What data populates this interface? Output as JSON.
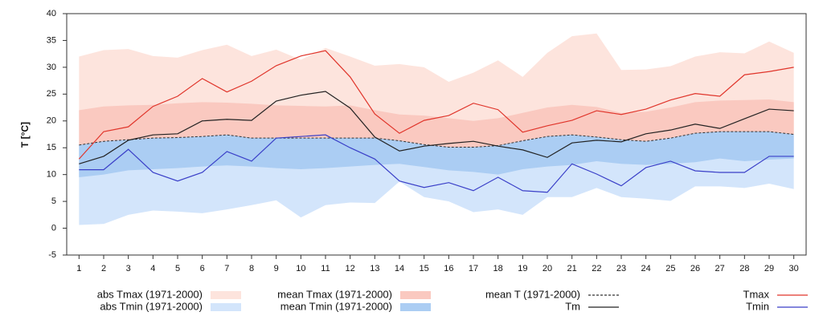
{
  "chart_data": {
    "type": "line",
    "ylabel": "T [°C]",
    "x": [
      1,
      2,
      3,
      4,
      5,
      6,
      7,
      8,
      9,
      10,
      11,
      12,
      13,
      14,
      15,
      16,
      17,
      18,
      19,
      20,
      21,
      22,
      23,
      24,
      25,
      26,
      27,
      28,
      29,
      30
    ],
    "xlim": [
      0.5,
      30.5
    ],
    "xticks": [
      1,
      2,
      3,
      4,
      5,
      6,
      7,
      8,
      9,
      10,
      11,
      12,
      13,
      14,
      15,
      16,
      17,
      18,
      19,
      20,
      21,
      22,
      23,
      24,
      25,
      26,
      27,
      28,
      29,
      30
    ],
    "ylim": [
      -5,
      40
    ],
    "yticks": [
      -5,
      0,
      5,
      10,
      15,
      20,
      25,
      30,
      35,
      40
    ],
    "series": [
      {
        "name": "abs Tmax (1971-2000)",
        "color": "#fde4dd",
        "style": "band",
        "values": [
          32,
          33.2,
          33.4,
          32.1,
          31.8,
          33.2,
          34.2,
          32.1,
          33.3,
          31.4,
          33.6,
          32,
          30.3,
          30.6,
          30,
          27.3,
          29,
          31.3,
          28.2,
          32.7,
          35.8,
          36.3,
          29.5,
          29.6,
          30.2,
          32,
          32.8,
          32.6,
          34.8,
          32.7
        ]
      },
      {
        "name": "abs Tmin (1971-2000)",
        "color": "#d3e5fb",
        "style": "band",
        "values": [
          0.6,
          0.8,
          2.5,
          3.3,
          3.1,
          2.8,
          3.5,
          4.3,
          5.2,
          2,
          4.3,
          4.8,
          4.7,
          8.7,
          5.8,
          5,
          3,
          3.5,
          2.5,
          5.8,
          5.8,
          7.5,
          5.8,
          5.5,
          5.1,
          7.8,
          7.8,
          7.5,
          8.3,
          7.3
        ]
      },
      {
        "name": "mean Tmax (1971-2000)",
        "color": "#fac9c0",
        "style": "band",
        "values": [
          22,
          22.7,
          22.9,
          23,
          23.3,
          23.5,
          23.4,
          23.2,
          22.9,
          22.8,
          22.7,
          22.9,
          22,
          21.2,
          21,
          20.5,
          20,
          20.5,
          21.5,
          22.5,
          23,
          22.6,
          21.5,
          21.7,
          22.5,
          23.5,
          23.8,
          23.9,
          24,
          23.5
        ]
      },
      {
        "name": "mean Tmin (1971-2000)",
        "color": "#abcdf3",
        "style": "band",
        "values": [
          9.5,
          10,
          10.8,
          11,
          11.2,
          11.5,
          11.7,
          11.5,
          11.2,
          11,
          11.2,
          11.5,
          11.8,
          12,
          11.4,
          10.8,
          10.5,
          10,
          11,
          11.5,
          11.8,
          12.5,
          12,
          11.8,
          12,
          12.3,
          13,
          12.5,
          12.8,
          13
        ]
      },
      {
        "name": "mean T (1971-2000)",
        "color": "#333333",
        "style": "dashed",
        "values": [
          15.5,
          16.2,
          16.5,
          16.8,
          16.9,
          17.1,
          17.4,
          16.8,
          16.8,
          16.8,
          16.8,
          16.8,
          16.8,
          16.3,
          15.6,
          15.1,
          15.1,
          15.4,
          16.3,
          17.1,
          17.4,
          17,
          16.5,
          16.2,
          16.8,
          17.7,
          18,
          18,
          18,
          17.5
        ]
      },
      {
        "name": "Tm",
        "color": "#222222",
        "style": "solid",
        "values": [
          12,
          13.4,
          16.4,
          17.4,
          17.6,
          20,
          20.3,
          20.1,
          23.7,
          24.8,
          25.5,
          22.4,
          17,
          14.4,
          15.3,
          15.8,
          16.2,
          15.3,
          14.6,
          13.2,
          15.9,
          16.4,
          16.1,
          17.6,
          18.3,
          19.4,
          18.6,
          20.4,
          22.2,
          21.9
        ]
      },
      {
        "name": "Tmax",
        "color": "#e0352b",
        "style": "solid",
        "values": [
          12.9,
          18,
          18.9,
          22.7,
          24.6,
          27.9,
          25.4,
          27.4,
          30.3,
          32.1,
          33.1,
          28.2,
          21.3,
          17.7,
          20.1,
          21,
          23.3,
          22.1,
          17.9,
          19.1,
          20.1,
          21.9,
          21.2,
          22.2,
          23.9,
          25.1,
          24.6,
          28.6,
          29.2,
          30
        ]
      },
      {
        "name": "Tmin",
        "color": "#3a3fc8",
        "style": "solid",
        "values": [
          10.9,
          10.9,
          14.7,
          10.4,
          8.8,
          10.4,
          14.3,
          12.5,
          16.8,
          17.1,
          17.4,
          15,
          12.9,
          8.8,
          7.6,
          8.5,
          7,
          9.5,
          7,
          6.7,
          12,
          10.1,
          7.9,
          11.3,
          12.5,
          10.7,
          10.4,
          10.4,
          13.4,
          13.4
        ]
      }
    ]
  }
}
